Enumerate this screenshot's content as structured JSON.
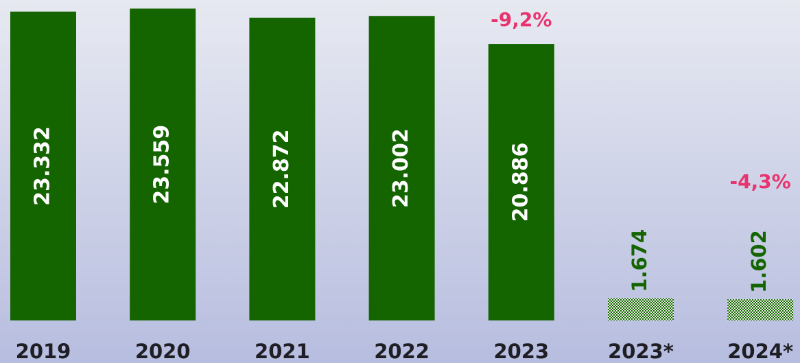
{
  "chart_data": {
    "type": "bar",
    "categories": [
      "2019",
      "2020",
      "2021",
      "2022",
      "2023",
      "2023*",
      "2024*"
    ],
    "values": [
      23332,
      23559,
      22872,
      23002,
      20886,
      1674,
      1602
    ],
    "value_labels": [
      "23.332",
      "23.559",
      "22.872",
      "23.002",
      "20.886",
      "1.674",
      "1.602"
    ],
    "color": "#146400",
    "hatch": [
      false,
      false,
      false,
      false,
      false,
      true,
      true
    ],
    "ylim": [
      0,
      24000
    ],
    "annotations": [
      {
        "text": "-9,2%",
        "at": "2023"
      },
      {
        "text": "-4,3%",
        "at": "2024*"
      }
    ],
    "annotation_color": "#e8336f"
  }
}
